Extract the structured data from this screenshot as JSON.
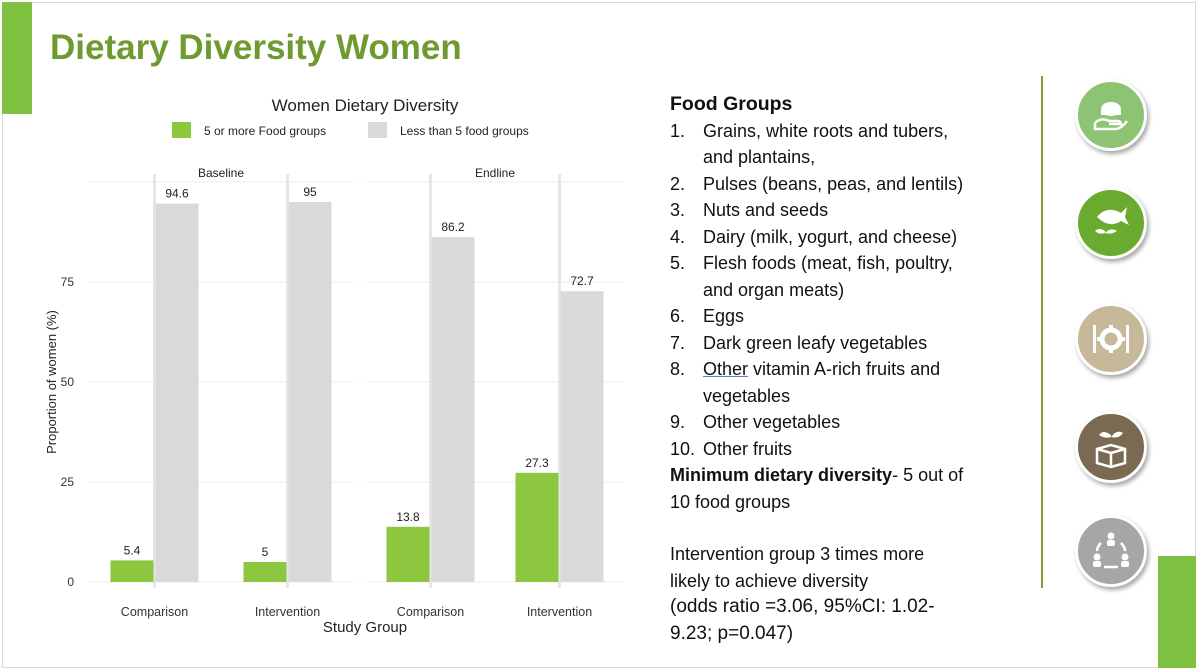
{
  "slide": {
    "title": "Dietary Diversity Women"
  },
  "colors": {
    "accent_green": "#7fc241",
    "title_green": "#6e9a2f",
    "bar_green": "#8dc63f",
    "bar_grey": "#d9d9d9"
  },
  "chart_data": {
    "type": "bar",
    "title": "Women Dietary Diversity",
    "xlabel": "Study Group",
    "ylabel": "Proportion of women (%)",
    "ylim": [
      0,
      100
    ],
    "yticks": [
      "0",
      "25",
      "50",
      "75"
    ],
    "legend": {
      "placement": "top",
      "entries": [
        "5 or more Food groups",
        "Less than 5 food groups"
      ]
    },
    "grid": true,
    "panels": [
      {
        "name": "Baseline",
        "categories": [
          "Comparison",
          "Intervention"
        ],
        "series": [
          {
            "name": "5 or more Food groups",
            "values": [
              5.4,
              5
            ],
            "labels": [
              "5.4",
              "5"
            ]
          },
          {
            "name": "Less than 5 food groups",
            "values": [
              94.6,
              95
            ],
            "labels": [
              "94.6",
              "95"
            ]
          }
        ]
      },
      {
        "name": "Endline",
        "categories": [
          "Comparison",
          "Intervention"
        ],
        "series": [
          {
            "name": "5 or more Food groups",
            "values": [
              13.8,
              27.3
            ],
            "labels": [
              "13.8",
              "27.3"
            ]
          },
          {
            "name": "Less than 5 food groups",
            "values": [
              86.2,
              72.7
            ],
            "labels": [
              "86.2",
              "72.7"
            ]
          }
        ]
      }
    ]
  },
  "food_groups": {
    "heading": "Food Groups",
    "items": [
      {
        "num": "1.",
        "lines": [
          "Grains, white roots and tubers,",
          "and plantains,"
        ]
      },
      {
        "num": "2.",
        "lines": [
          "Pulses (beans, peas, and lentils)"
        ]
      },
      {
        "num": "3.",
        "lines": [
          "Nuts and seeds"
        ]
      },
      {
        "num": "4.",
        "lines": [
          "Dairy (milk, yogurt, and cheese)"
        ]
      },
      {
        "num": "5.",
        "lines": [
          "Flesh foods (meat, fish, poultry,",
          "and organ meats)"
        ]
      },
      {
        "num": "6.",
        "lines": [
          "Eggs"
        ]
      },
      {
        "num": "7.",
        "lines": [
          "Dark green leafy vegetables"
        ]
      },
      {
        "num": "8.",
        "underlined": "Other",
        "rest": " vitamin A-rich fruits and",
        "lines": [
          "vegetables"
        ]
      },
      {
        "num": "9.",
        "lines": [
          "Other vegetables"
        ]
      },
      {
        "num": "10.",
        "lines": [
          "Other fruits"
        ]
      }
    ],
    "min_bold": "Minimum dietary diversity",
    "min_rest_1": "- 5 out of",
    "min_rest_2": "10 food groups",
    "intervention_1": "Intervention group 3 times more",
    "intervention_2": "likely to achieve diversity",
    "odds_1": "(odds ratio =3.06, 95%CI: 1.02-",
    "odds_2": "9.23; p=0.047)"
  },
  "icons": [
    {
      "name": "food-hand-icon",
      "color": "#8cc474"
    },
    {
      "name": "fish-plant-icon",
      "color": "#6aaa2f"
    },
    {
      "name": "utensils-gear-icon",
      "color": "#c8b89a"
    },
    {
      "name": "seedling-box-icon",
      "color": "#7a6a52"
    },
    {
      "name": "people-cycle-icon",
      "color": "#a6a6a6"
    }
  ]
}
